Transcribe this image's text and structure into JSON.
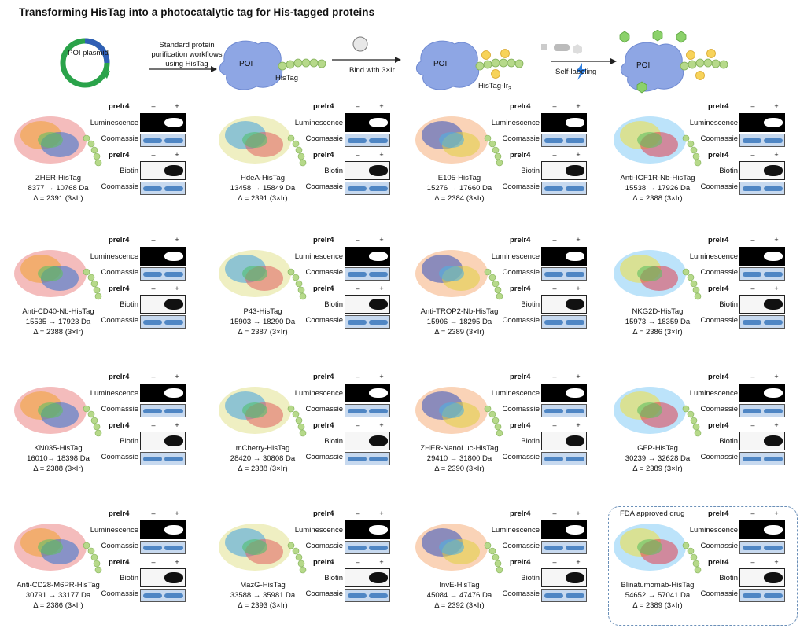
{
  "title": "Transforming HisTag into a photocatalytic tag for His-tagged proteins",
  "scheme": {
    "plasmid_label": "POI plasmid",
    "step1": "Standard protein purification workflows using HisTag",
    "poi": "POI",
    "histag": "HisTag",
    "step2": "Bind with 3×Ir",
    "histag_ir": "HisTag-Ir",
    "ir_sub": "3",
    "ir_badge": "Ir",
    "gm_badge": "GM",
    "step3": "Self-labeling"
  },
  "labels": {
    "prelr": "prelr4",
    "minus": "–",
    "plus": "+",
    "luminescence": "Luminescence",
    "coomassie": "Coomassie",
    "biotin": "Biotin"
  },
  "fda_label": "FDA approved drug",
  "panels": [
    {
      "name": "ZHER-HisTag",
      "mass": "8377 → 10768 Da",
      "delta": "Δ = 2391 (3×Ir)"
    },
    {
      "name": "HdeA-HisTag",
      "mass": "13458 → 15849 Da",
      "delta": "Δ = 2391 (3×Ir)"
    },
    {
      "name": "E105-HisTag",
      "mass": "15276 → 17660 Da",
      "delta": "Δ = 2384 (3×Ir)"
    },
    {
      "name": "Anti-IGF1R-Nb-HisTag",
      "mass": "15538 → 17926 Da",
      "delta": "Δ = 2388 (3×Ir)"
    },
    {
      "name": "Anti-CD40-Nb-HisTag",
      "mass": "15535 → 17923 Da",
      "delta": "Δ = 2388 (3×Ir)"
    },
    {
      "name": "P43-HisTag",
      "mass": "15903 → 18290 Da",
      "delta": "Δ = 2387 (3×Ir)"
    },
    {
      "name": "Anti-TROP2-Nb-HisTag",
      "mass": "15906 → 18295 Da",
      "delta": "Δ = 2389 (3×Ir)"
    },
    {
      "name": "NKG2D-HisTag",
      "mass": "15973 → 18359 Da",
      "delta": "Δ = 2386 (3×Ir)"
    },
    {
      "name": "KN035-HisTag",
      "mass": "16010→ 18398 Da",
      "delta": "Δ = 2388 (3×Ir)"
    },
    {
      "name": "mCherry-HisTag",
      "mass": "28420 → 30808 Da",
      "delta": "Δ = 2388 (3×Ir)"
    },
    {
      "name": "ZHER-NanoLuc-HisTag",
      "mass": "29410 → 31800 Da",
      "delta": "Δ = 2390 (3×Ir)"
    },
    {
      "name": "GFP-HisTag",
      "mass": "30239 → 32628 Da",
      "delta": "Δ = 2389 (3×Ir)"
    },
    {
      "name": "Anti-CD28-M6PR-HisTag",
      "mass": "30791 → 33177 Da",
      "delta": "Δ = 2386 (3×Ir)"
    },
    {
      "name": "MazG-HisTag",
      "mass": "33588 → 35981 Da",
      "delta": "Δ = 2393 (3×Ir)"
    },
    {
      "name": "InvE-HisTag",
      "mass": "45084 → 47476 Da",
      "delta": "Δ = 2392 (3×Ir)"
    },
    {
      "name": "Blinatumomab-HisTag",
      "mass": "54652 → 57041 Da",
      "delta": "Δ = 2389 (3×Ir)"
    }
  ]
}
